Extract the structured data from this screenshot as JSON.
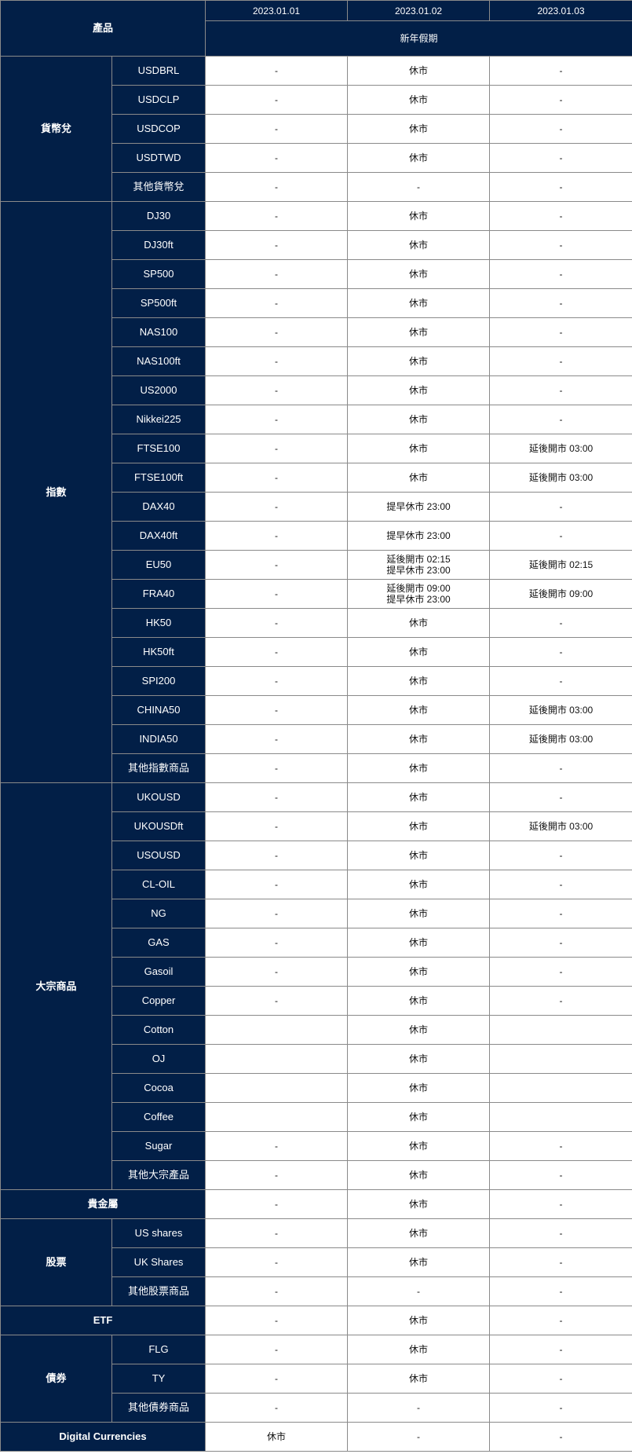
{
  "header": {
    "product_label": "產品",
    "dates": [
      "2023.01.01",
      "2023.01.02",
      "2023.01.03"
    ],
    "holiday": "新年假期"
  },
  "categories": [
    {
      "name": "貨幣兌",
      "items": [
        {
          "name": "USDBRL",
          "values": [
            "-",
            "休市",
            "-"
          ]
        },
        {
          "name": "USDCLP",
          "values": [
            "-",
            "休市",
            "-"
          ]
        },
        {
          "name": "USDCOP",
          "values": [
            "-",
            "休市",
            "-"
          ]
        },
        {
          "name": "USDTWD",
          "values": [
            "-",
            "休市",
            "-"
          ]
        },
        {
          "name": "其他貨幣兌",
          "values": [
            "-",
            "-",
            "-"
          ]
        }
      ]
    },
    {
      "name": "指數",
      "items": [
        {
          "name": "DJ30",
          "values": [
            "-",
            "休市",
            "-"
          ]
        },
        {
          "name": "DJ30ft",
          "values": [
            "-",
            "休市",
            "-"
          ]
        },
        {
          "name": "SP500",
          "values": [
            "-",
            "休市",
            "-"
          ]
        },
        {
          "name": "SP500ft",
          "values": [
            "-",
            "休市",
            "-"
          ]
        },
        {
          "name": "NAS100",
          "values": [
            "-",
            "休市",
            "-"
          ]
        },
        {
          "name": "NAS100ft",
          "values": [
            "-",
            "休市",
            "-"
          ]
        },
        {
          "name": "US2000",
          "values": [
            "-",
            "休市",
            "-"
          ]
        },
        {
          "name": "Nikkei225",
          "values": [
            "-",
            "休市",
            "-"
          ]
        },
        {
          "name": "FTSE100",
          "values": [
            "-",
            "休市",
            "延後開市 03:00"
          ]
        },
        {
          "name": "FTSE100ft",
          "values": [
            "-",
            "休市",
            "延後開市 03:00"
          ]
        },
        {
          "name": "DAX40",
          "values": [
            "-",
            "提早休市 23:00",
            "-"
          ]
        },
        {
          "name": "DAX40ft",
          "values": [
            "-",
            "提早休市 23:00",
            "-"
          ]
        },
        {
          "name": "EU50",
          "values": [
            "-",
            [
              "延後開市 02:15",
              "提早休市 23:00"
            ],
            "延後開市 02:15"
          ]
        },
        {
          "name": "FRA40",
          "values": [
            "-",
            [
              "延後開市 09:00",
              "提早休市 23:00"
            ],
            "延後開市 09:00"
          ]
        },
        {
          "name": "HK50",
          "values": [
            "-",
            "休市",
            "-"
          ]
        },
        {
          "name": "HK50ft",
          "values": [
            "-",
            "休市",
            "-"
          ]
        },
        {
          "name": "SPI200",
          "values": [
            "-",
            "休市",
            "-"
          ]
        },
        {
          "name": "CHINA50",
          "values": [
            "-",
            "休市",
            "延後開市 03:00"
          ]
        },
        {
          "name": "INDIA50",
          "values": [
            "-",
            "休市",
            "延後開市 03:00"
          ]
        },
        {
          "name": "其他指數商品",
          "values": [
            "-",
            "休市",
            "-"
          ]
        }
      ]
    },
    {
      "name": "大宗商品",
      "items": [
        {
          "name": "UKOUSD",
          "values": [
            "-",
            "休市",
            "-"
          ]
        },
        {
          "name": "UKOUSDft",
          "values": [
            "-",
            "休市",
            "延後開市 03:00"
          ]
        },
        {
          "name": "USOUSD",
          "values": [
            "-",
            "休市",
            "-"
          ]
        },
        {
          "name": "CL-OIL",
          "values": [
            "-",
            "休市",
            "-"
          ]
        },
        {
          "name": "NG",
          "values": [
            "-",
            "休市",
            "-"
          ]
        },
        {
          "name": "GAS",
          "values": [
            "-",
            "休市",
            "-"
          ]
        },
        {
          "name": "Gasoil",
          "values": [
            "-",
            "休市",
            "-"
          ]
        },
        {
          "name": "Copper",
          "values": [
            "-",
            "休市",
            "-"
          ]
        },
        {
          "name": "Cotton",
          "values": [
            "",
            "休市",
            ""
          ]
        },
        {
          "name": "OJ",
          "values": [
            "",
            "休市",
            ""
          ]
        },
        {
          "name": "Cocoa",
          "values": [
            "",
            "休市",
            ""
          ]
        },
        {
          "name": "Coffee",
          "values": [
            "",
            "休市",
            ""
          ]
        },
        {
          "name": "Sugar",
          "values": [
            "-",
            "休市",
            "-"
          ]
        },
        {
          "name": "其他大宗產品",
          "values": [
            "-",
            "休市",
            "-"
          ]
        }
      ]
    },
    {
      "name": "貴金屬",
      "values": [
        "-",
        "休市",
        "-"
      ]
    },
    {
      "name": "股票",
      "items": [
        {
          "name": "US shares",
          "values": [
            "-",
            "休市",
            "-"
          ]
        },
        {
          "name": "UK Shares",
          "values": [
            "-",
            "休市",
            "-"
          ]
        },
        {
          "name": "其他股票商品",
          "values": [
            "-",
            "-",
            "-"
          ]
        }
      ]
    },
    {
      "name": "ETF",
      "values": [
        "-",
        "休市",
        "-"
      ]
    },
    {
      "name": "債券",
      "items": [
        {
          "name": "FLG",
          "values": [
            "-",
            "休市",
            "-"
          ]
        },
        {
          "name": "TY",
          "values": [
            "-",
            "休市",
            "-"
          ]
        },
        {
          "name": "其他債券商品",
          "values": [
            "-",
            "-",
            "-"
          ]
        }
      ]
    },
    {
      "name": "Digital Currencies",
      "values": [
        "休市",
        "-",
        "-"
      ]
    }
  ],
  "colors": {
    "header_bg": "#021f47",
    "header_text": "#ffffff",
    "border": "#8a8a8a"
  }
}
